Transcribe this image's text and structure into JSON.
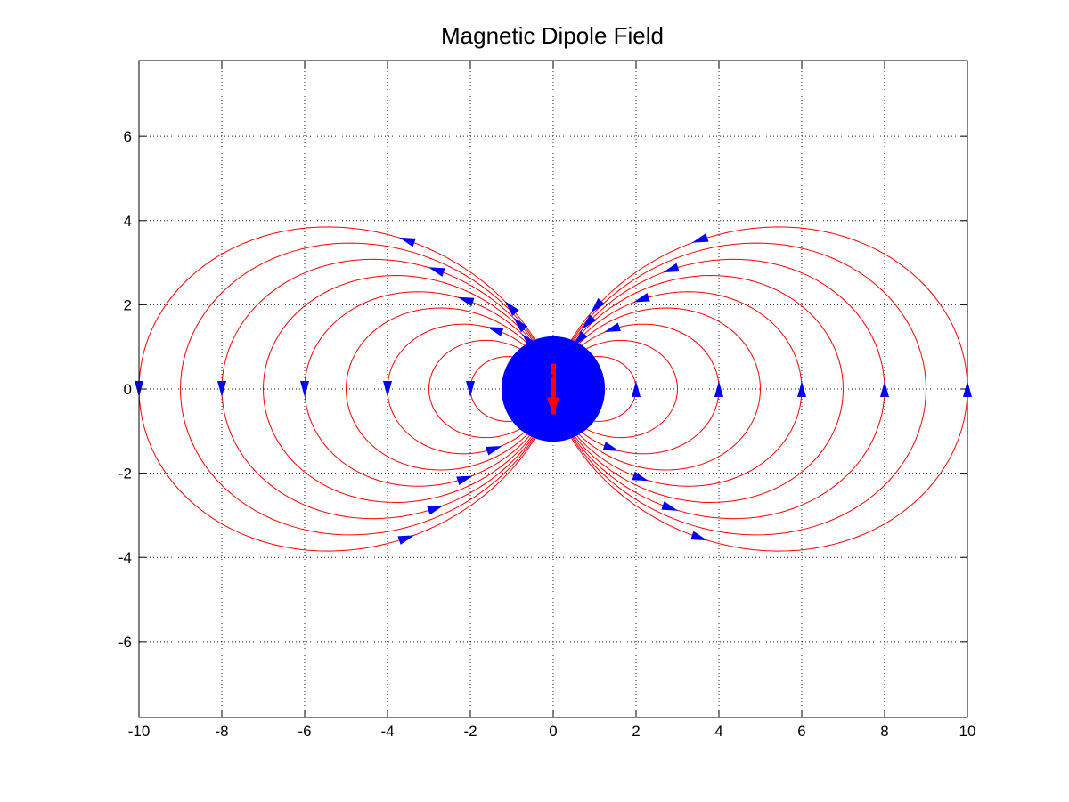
{
  "chart_data": {
    "type": "line",
    "title": "Magnetic Dipole Field",
    "xlabel": "",
    "ylabel": "",
    "xlim": [
      -10,
      10
    ],
    "ylim": [
      -7.8,
      7.8
    ],
    "xticks": [
      -10,
      -8,
      -6,
      -4,
      -2,
      0,
      2,
      4,
      6,
      8,
      10
    ],
    "yticks": [
      -6,
      -4,
      -2,
      0,
      2,
      4,
      6
    ],
    "grid": true,
    "background": "#ffffff",
    "colors": {
      "field_line": "#ff0000",
      "arrow": "#0000ff",
      "dipole_body": "#0000ff",
      "dipole_moment": "#ff0000"
    },
    "dipole": {
      "center": [
        0,
        0
      ],
      "radius": 1.25,
      "moment_arrow": {
        "from": [
          0,
          -0.6
        ],
        "to": [
          0,
          0.6
        ]
      }
    },
    "series": [
      {
        "family": "dipole field lines",
        "equation": "r = L * sin(theta)^2",
        "L_values": [
          2,
          4,
          6,
          8,
          10
        ],
        "theta_range_deg": [
          10,
          170
        ],
        "sides": [
          "left",
          "right"
        ]
      },
      {
        "family": "outer dipole field lines",
        "equation": "r = L * sin(theta)^2",
        "L_values": [
          3,
          5,
          7,
          9
        ],
        "theta_range_deg": [
          14,
          166
        ],
        "sides": [
          "left",
          "right"
        ]
      }
    ],
    "arrows": {
      "markers_per_line": 4,
      "direction_right_side": "upper half points left (toward +y/-x), lower half points right",
      "direction_left_side": "upper half points right, lower half points left"
    }
  }
}
